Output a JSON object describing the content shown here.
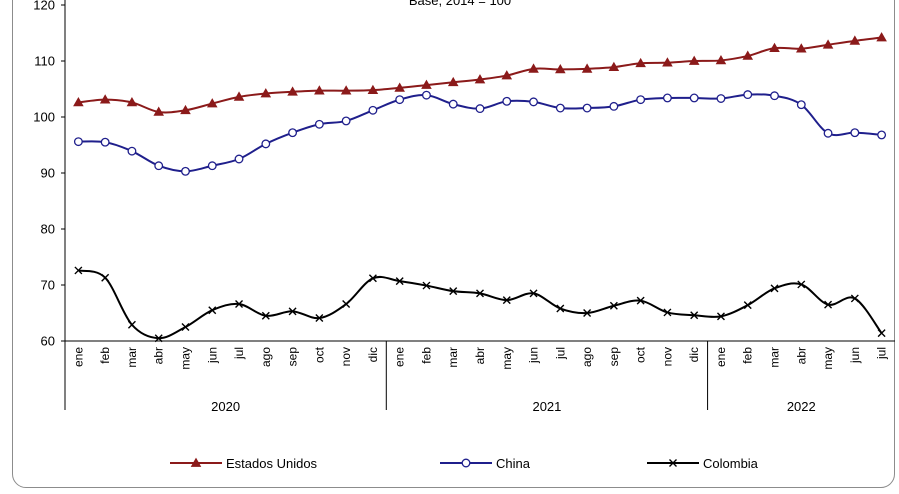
{
  "chart_data": {
    "type": "line",
    "subtitle": "Base, 2014 = 100",
    "ylim": [
      60,
      120
    ],
    "yticks": [
      60,
      70,
      80,
      90,
      100,
      110,
      120
    ],
    "grid": false,
    "legend_position": "bottom",
    "categories": [
      "ene",
      "feb",
      "mar",
      "abr",
      "may",
      "jun",
      "jul",
      "ago",
      "sep",
      "oct",
      "nov",
      "dic",
      "ene",
      "feb",
      "mar",
      "abr",
      "may",
      "jun",
      "jul",
      "ago",
      "sep",
      "oct",
      "nov",
      "dic",
      "ene",
      "feb",
      "mar",
      "abr",
      "may",
      "jun",
      "jul"
    ],
    "years": [
      {
        "label": "2020",
        "count": 12
      },
      {
        "label": "2021",
        "count": 12
      },
      {
        "label": "2022",
        "count": 7
      }
    ],
    "series": [
      {
        "name": "Estados Unidos",
        "color": "#8b1a1a",
        "marker": "triangle",
        "values": [
          102.6,
          103.1,
          102.6,
          100.9,
          101.2,
          102.4,
          103.6,
          104.2,
          104.5,
          104.7,
          104.7,
          104.8,
          105.2,
          105.7,
          106.2,
          106.7,
          107.4,
          108.6,
          108.5,
          108.6,
          108.9,
          109.6,
          109.7,
          110.0,
          110.1,
          110.9,
          112.3,
          112.2,
          112.9,
          113.6,
          114.2
        ]
      },
      {
        "name": "China",
        "color": "#1f1f8c",
        "marker": "circle",
        "values": [
          95.6,
          95.5,
          93.9,
          91.3,
          90.3,
          91.3,
          92.5,
          95.2,
          97.2,
          98.7,
          99.3,
          101.2,
          103.1,
          103.9,
          102.3,
          101.5,
          102.8,
          102.7,
          101.6,
          101.6,
          101.9,
          103.1,
          103.4,
          103.4,
          103.3,
          104.0,
          103.8,
          102.2,
          97.1,
          97.2,
          96.8
        ]
      },
      {
        "name": "Colombia",
        "color": "#000000",
        "marker": "x",
        "values": [
          72.6,
          71.3,
          62.9,
          60.5,
          62.5,
          65.5,
          66.6,
          64.5,
          65.3,
          64.1,
          66.6,
          71.2,
          70.7,
          69.9,
          68.9,
          68.5,
          67.3,
          68.5,
          65.8,
          65.0,
          66.3,
          67.2,
          65.1,
          64.6,
          64.4,
          66.4,
          69.4,
          70.1,
          66.5,
          67.6,
          61.4
        ]
      }
    ]
  }
}
